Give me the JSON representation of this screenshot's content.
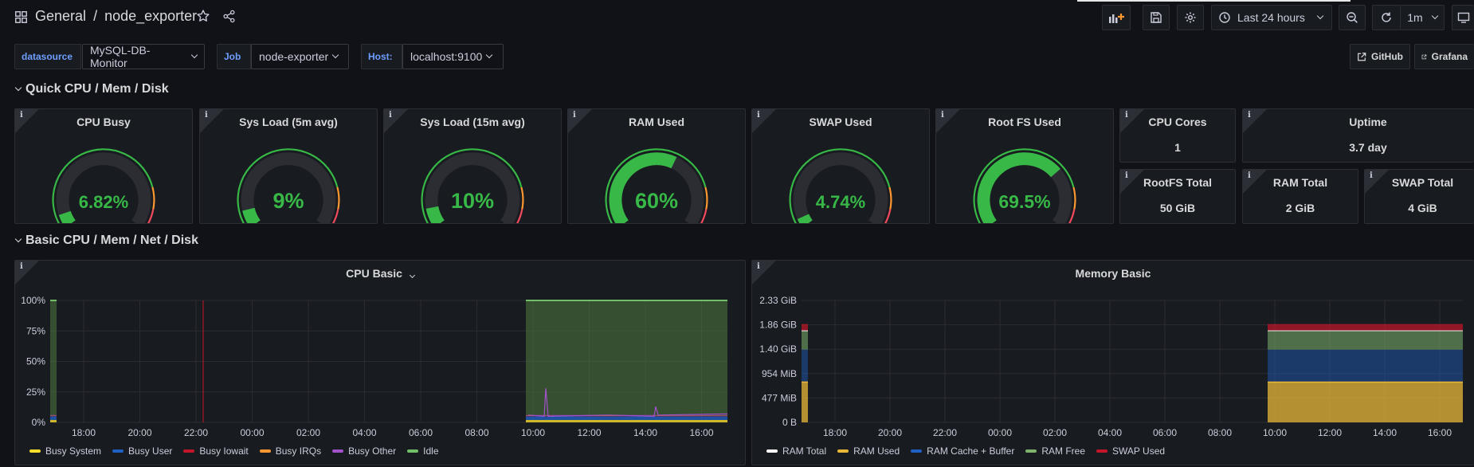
{
  "breadcrumb": {
    "folder": "General",
    "separator": "/",
    "dashboard": "node_exporter"
  },
  "toolbar": {
    "time_range": "Last 24 hours",
    "refresh_interval": "1m"
  },
  "variables": [
    {
      "label": "datasource",
      "value": "MySQL-DB-Monitor"
    },
    {
      "label": "Job",
      "value": "node-exporter"
    },
    {
      "label": "Host:",
      "value": "localhost:9100"
    }
  ],
  "links": [
    {
      "label": "GitHub"
    },
    {
      "label": "Grafana"
    }
  ],
  "rows": [
    {
      "title": "Quick CPU / Mem / Disk"
    },
    {
      "title": "Basic CPU / Mem / Net / Disk"
    }
  ],
  "gauges": [
    {
      "title": "CPU Busy",
      "value": "6.82%",
      "fraction": 0.0682
    },
    {
      "title": "Sys Load (5m avg)",
      "value": "9%",
      "fraction": 0.09
    },
    {
      "title": "Sys Load (15m avg)",
      "value": "10%",
      "fraction": 0.1
    },
    {
      "title": "RAM Used",
      "value": "60%",
      "fraction": 0.6
    },
    {
      "title": "SWAP Used",
      "value": "4.74%",
      "fraction": 0.0474
    },
    {
      "title": "Root FS Used",
      "value": "69.5%",
      "fraction": 0.695
    }
  ],
  "stats": [
    {
      "title": "CPU Cores",
      "value": "1"
    },
    {
      "title": "Uptime",
      "value": "3.7 day"
    },
    {
      "title": "RootFS Total",
      "value": "50 GiB"
    },
    {
      "title": "RAM Total",
      "value": "2 GiB"
    },
    {
      "title": "SWAP Total",
      "value": "4 GiB"
    }
  ],
  "colors": {
    "green": "#37b847",
    "orange": "#ff9830",
    "red": "#f2495c",
    "yellow": "#fade2a",
    "blue": "#1f60c4",
    "purple": "#a352cc",
    "track": "#2c2d33"
  },
  "chart_data": [
    {
      "type": "area",
      "title": "CPU Basic",
      "y_ticks": [
        "100%",
        "75%",
        "50%",
        "25%",
        "0%"
      ],
      "ylim": [
        0,
        100
      ],
      "x_ticks": [
        "18:00",
        "20:00",
        "22:00",
        "00:00",
        "02:00",
        "04:00",
        "06:00",
        "08:00",
        "10:00",
        "12:00",
        "14:00",
        "16:00"
      ],
      "series": [
        {
          "name": "Busy System",
          "color": "#fade2a"
        },
        {
          "name": "Busy User",
          "color": "#1f60c4"
        },
        {
          "name": "Busy Iowait",
          "color": "#c4162a"
        },
        {
          "name": "Busy IRQs",
          "color": "#ff9830"
        },
        {
          "name": "Busy Other",
          "color": "#a352cc"
        },
        {
          "name": "Idle",
          "color": "#73bf69"
        }
      ],
      "stacked_levels_pct": {
        "Busy System": 2,
        "Busy User": 3,
        "Busy Iowait": 0.3,
        "Busy IRQs": 0.3,
        "Busy Other": 0.5,
        "Idle": 94
      }
    },
    {
      "type": "area",
      "title": "Memory Basic",
      "y_ticks": [
        "2.33 GiB",
        "1.86 GiB",
        "1.40 GiB",
        "954 MiB",
        "477 MiB",
        "0 B"
      ],
      "ylim": [
        0,
        2.33
      ],
      "x_ticks": [
        "18:00",
        "20:00",
        "22:00",
        "00:00",
        "02:00",
        "04:00",
        "06:00",
        "08:00",
        "10:00",
        "12:00",
        "14:00",
        "16:00"
      ],
      "series": [
        {
          "name": "RAM Total",
          "color": "#ffffff"
        },
        {
          "name": "RAM Used",
          "color": "#eab839"
        },
        {
          "name": "RAM Cache + Buffer",
          "color": "#1f60c4"
        },
        {
          "name": "RAM Free",
          "color": "#7eb26d"
        },
        {
          "name": "SWAP Used",
          "color": "#c4162a"
        }
      ],
      "stacked_levels_gib": {
        "RAM Used": 0.77,
        "RAM Cache + Buffer": 0.62,
        "RAM Free": 0.36,
        "SWAP Used": 0.13
      }
    }
  ]
}
